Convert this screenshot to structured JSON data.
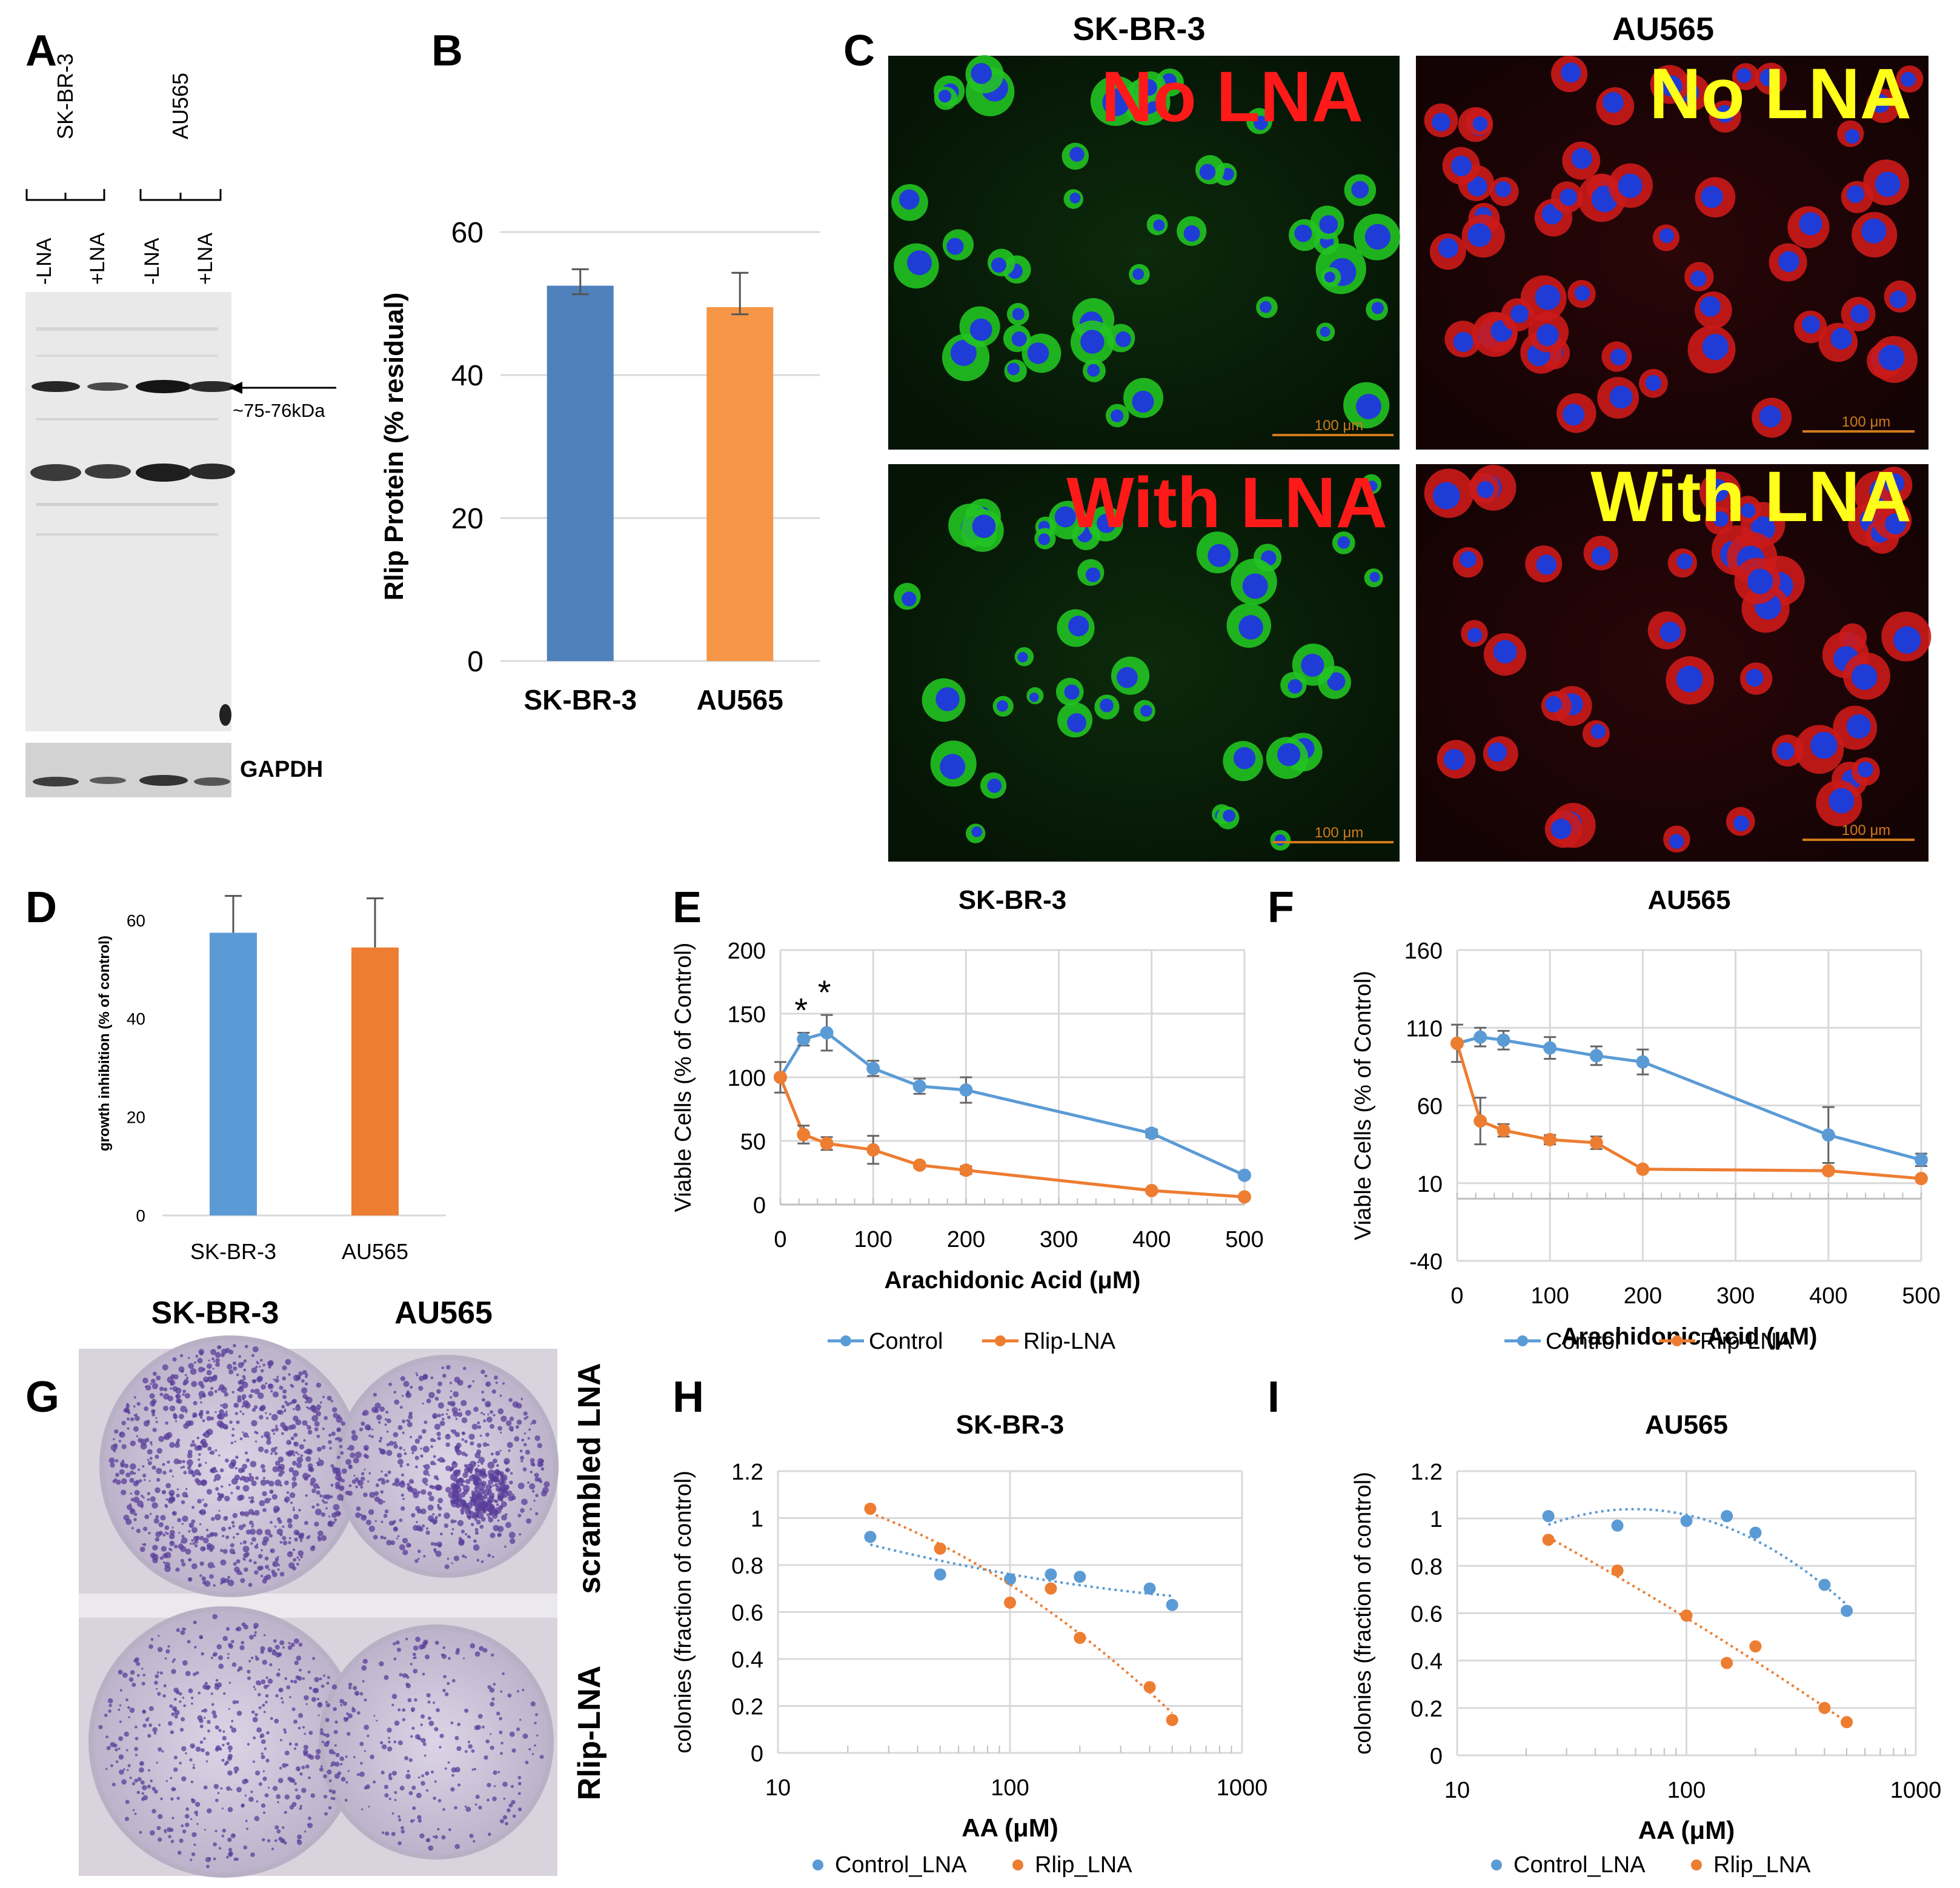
{
  "colors": {
    "blue": "#5B9BD5",
    "orange": "#ED7D31",
    "barBlue": "#4F81BD",
    "barOrange": "#F79646",
    "grid": "#d9d9d9",
    "axis": "#7f7f7f",
    "labelRed": "#ff1a1a",
    "labelYellow": "#ffff1a",
    "microGreen": "#22c322",
    "microRed": "#cc1a1a",
    "microBlue": "#1f3cd6",
    "crystal": "#5a3d9a"
  },
  "panels": {
    "a": {
      "letter": "A",
      "group1": "SK-BR-3",
      "group2": "AU565",
      "lanes": [
        "-LNA",
        "+LNA",
        "-LNA",
        "+LNA"
      ],
      "band_label": "~75-76kDa",
      "loading_label": "GAPDH"
    },
    "b": {
      "letter": "B"
    },
    "c": {
      "letter": "C",
      "col1": "SK-BR-3",
      "col2": "AU565",
      "no_lna": "No LNA",
      "with_lna": "With LNA",
      "scale": "100 μm"
    },
    "d": {
      "letter": "D"
    },
    "e": {
      "letter": "E"
    },
    "f": {
      "letter": "F"
    },
    "g": {
      "letter": "G",
      "col1": "SK-BR-3",
      "col2": "AU565",
      "row1": "scrambled LNA",
      "row2": "Rlip-LNA"
    },
    "h": {
      "letter": "H"
    },
    "i": {
      "letter": "I"
    }
  },
  "chart_data": [
    {
      "id": "B",
      "type": "bar",
      "title": "",
      "xlabel": "",
      "ylabel": "Rlip Protein (% residual)",
      "categories": [
        "SK-BR-3",
        "AU565"
      ],
      "values": [
        52.5,
        49.5
      ],
      "errors_up": [
        2.3,
        4.8
      ],
      "errors_down": [
        1.2,
        1.0
      ],
      "ylim": [
        0,
        60
      ],
      "yticks": [
        0,
        20,
        40,
        60
      ],
      "grid": true
    },
    {
      "id": "D",
      "type": "bar",
      "title": "",
      "xlabel": "",
      "ylabel": "growth inhibition (% of control)",
      "categories": [
        "SK-BR-3",
        "AU565"
      ],
      "values": [
        57.5,
        54.5
      ],
      "errors_up": [
        7.5,
        10
      ],
      "ylim": [
        0,
        70
      ],
      "yticks": [
        0,
        20,
        40,
        60
      ],
      "grid": false
    },
    {
      "id": "E",
      "type": "line",
      "title": "SK-BR-3",
      "xlabel": "Arachidonic Acid (μM)",
      "ylabel": "Viable Cells (% of Control)",
      "xlim": [
        0,
        500
      ],
      "ylim": [
        0,
        200
      ],
      "xticks": [
        0,
        100,
        200,
        300,
        400,
        500
      ],
      "yticks": [
        0,
        50,
        100,
        150,
        200
      ],
      "series": [
        {
          "name": "Control",
          "x": [
            0,
            25,
            50,
            100,
            150,
            200,
            400,
            500
          ],
          "y": [
            100,
            130,
            135,
            107,
            93,
            90,
            56,
            23
          ],
          "err": [
            12,
            5,
            14,
            6,
            6,
            10,
            3,
            2
          ]
        },
        {
          "name": "Rlip-LNA",
          "x": [
            0,
            25,
            50,
            100,
            150,
            200,
            400,
            500
          ],
          "y": [
            100,
            55,
            48,
            43,
            31,
            27,
            11,
            6
          ],
          "err": [
            0,
            7,
            5,
            11,
            2,
            3,
            1,
            1
          ]
        }
      ],
      "annotations": [
        "*",
        "*"
      ],
      "legend": [
        "Control",
        "Rlip-LNA"
      ]
    },
    {
      "id": "F",
      "type": "line",
      "title": "AU565",
      "xlabel": "Arachidonic Acid (μM)",
      "ylabel": "Viable Cells (% of Control)",
      "xlim": [
        0,
        500
      ],
      "ylim": [
        -40,
        160
      ],
      "xticks": [
        0,
        100,
        200,
        300,
        400,
        500
      ],
      "yticks": [
        -40,
        10,
        60,
        110,
        160
      ],
      "series": [
        {
          "name": "Control",
          "x": [
            0,
            25,
            50,
            100,
            150,
            200,
            400,
            500
          ],
          "y": [
            100,
            104,
            102,
            97,
            92,
            88,
            41,
            25
          ],
          "err": [
            12,
            6,
            6,
            7,
            6,
            8,
            18,
            4
          ]
        },
        {
          "name": "Rlip-LNA",
          "x": [
            0,
            25,
            50,
            100,
            150,
            200,
            400,
            500
          ],
          "y": [
            100,
            50,
            44,
            38,
            36,
            19,
            18,
            13
          ],
          "err": [
            0,
            15,
            4,
            3,
            4,
            1,
            1,
            1
          ]
        }
      ],
      "legend": [
        "Control",
        "Rlip-LNA"
      ]
    },
    {
      "id": "H",
      "type": "scatter",
      "title": "SK-BR-3",
      "xlabel": "AA (μM)",
      "ylabel": "colonies (fraction of control)",
      "xscale": "log",
      "xlim": [
        10,
        1000
      ],
      "ylim": [
        0,
        1.2
      ],
      "xticks": [
        10,
        100,
        1000
      ],
      "yticks": [
        0,
        0.2,
        0.4,
        0.6,
        0.8,
        1,
        1.2
      ],
      "series": [
        {
          "name": "Control_LNA",
          "x": [
            25,
            50,
            100,
            150,
            200,
            400,
            500
          ],
          "y": [
            0.92,
            0.76,
            0.74,
            0.76,
            0.75,
            0.7,
            0.63
          ]
        },
        {
          "name": "Rlip_LNA",
          "x": [
            25,
            50,
            100,
            150,
            200,
            400,
            500
          ],
          "y": [
            1.04,
            0.87,
            0.64,
            0.7,
            0.49,
            0.28,
            0.14
          ]
        }
      ],
      "legend": [
        "Control_LNA",
        "Rlip_LNA"
      ]
    },
    {
      "id": "I",
      "type": "scatter",
      "title": "AU565",
      "xlabel": "AA (μM)",
      "ylabel": "colonies (fraction of control)",
      "xscale": "log",
      "xlim": [
        10,
        1000
      ],
      "ylim": [
        0,
        1.2
      ],
      "xticks": [
        10,
        100,
        1000
      ],
      "yticks": [
        0,
        0.2,
        0.4,
        0.6,
        0.8,
        1,
        1.2
      ],
      "series": [
        {
          "name": "Control_LNA",
          "x": [
            25,
            50,
            100,
            150,
            200,
            400,
            500
          ],
          "y": [
            1.01,
            0.97,
            0.99,
            1.01,
            0.94,
            0.72,
            0.61
          ]
        },
        {
          "name": "Rlip_LNA",
          "x": [
            25,
            50,
            100,
            150,
            200,
            400,
            500
          ],
          "y": [
            0.91,
            0.78,
            0.59,
            0.39,
            0.46,
            0.2,
            0.14
          ]
        }
      ],
      "legend": [
        "Control_LNA",
        "Rlip_LNA"
      ]
    }
  ]
}
